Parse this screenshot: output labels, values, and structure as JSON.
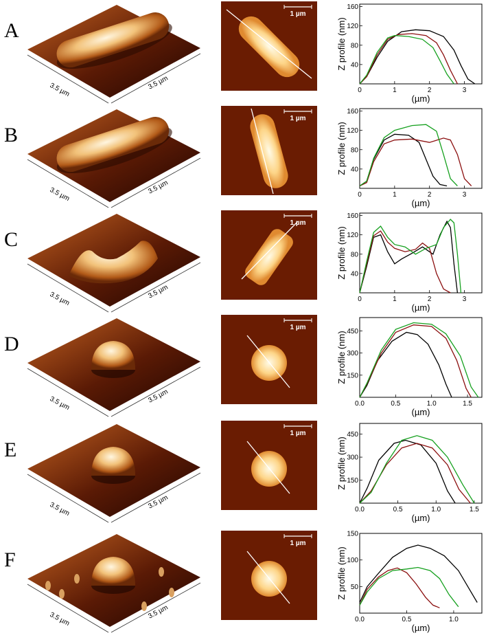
{
  "figure": {
    "scalebar_label": "1 µm",
    "axis_dim_label": "3.5 µm",
    "ylabel": "Z profile (nm)",
    "xlabel": "(µm)",
    "colors": {
      "black": "#000000",
      "red": "#8b0f0f",
      "green": "#15a01e"
    }
  },
  "rows": [
    {
      "letter": "A",
      "shape": "rod",
      "chart_data": {
        "type": "line",
        "xlim": [
          0,
          3.5
        ],
        "ylim": [
          0,
          165
        ],
        "xticks": [
          "0",
          "1",
          "2",
          "3"
        ],
        "yticks": [
          "40",
          "80",
          "120",
          "160"
        ],
        "series": [
          {
            "name": "black",
            "x": [
              0,
              0.2,
              0.5,
              0.8,
              1.2,
              1.6,
              2.0,
              2.4,
              2.7,
              2.9,
              3.1,
              3.3
            ],
            "y": [
              0,
              15,
              55,
              88,
              108,
              112,
              110,
              98,
              70,
              38,
              10,
              0
            ]
          },
          {
            "name": "red",
            "x": [
              0,
              0.2,
              0.5,
              0.8,
              1.1,
              1.5,
              1.9,
              2.2,
              2.4,
              2.6,
              2.8
            ],
            "y": [
              0,
              15,
              60,
              92,
              102,
              104,
              100,
              85,
              60,
              28,
              0
            ]
          },
          {
            "name": "green",
            "x": [
              0,
              0.2,
              0.5,
              0.8,
              1.0,
              1.4,
              1.8,
              2.1,
              2.3,
              2.5,
              2.7
            ],
            "y": [
              0,
              18,
              65,
              95,
              100,
              98,
              92,
              75,
              48,
              20,
              0
            ]
          }
        ]
      }
    },
    {
      "letter": "B",
      "shape": "rod",
      "chart_data": {
        "type": "line",
        "xlim": [
          0,
          3.5
        ],
        "ylim": [
          0,
          165
        ],
        "xticks": [
          "0",
          "1",
          "2",
          "3"
        ],
        "yticks": [
          "40",
          "80",
          "120",
          "160"
        ],
        "series": [
          {
            "name": "black",
            "x": [
              0,
              0.2,
              0.4,
              0.7,
              1.0,
              1.4,
              1.7,
              1.9,
              2.1,
              2.3,
              2.5
            ],
            "y": [
              5,
              15,
              60,
              100,
              112,
              110,
              95,
              60,
              25,
              8,
              5
            ]
          },
          {
            "name": "red",
            "x": [
              0,
              0.2,
              0.4,
              0.7,
              1.0,
              1.5,
              2.0,
              2.4,
              2.6,
              2.8,
              3.0,
              3.2
            ],
            "y": [
              5,
              12,
              55,
              92,
              100,
              102,
              95,
              104,
              100,
              70,
              20,
              5
            ]
          },
          {
            "name": "green",
            "x": [
              0,
              0.2,
              0.4,
              0.7,
              1.0,
              1.5,
              1.9,
              2.2,
              2.4,
              2.6,
              2.8
            ],
            "y": [
              5,
              15,
              62,
              105,
              120,
              130,
              132,
              118,
              70,
              20,
              5
            ]
          }
        ]
      }
    },
    {
      "letter": "C",
      "shape": "collapsed",
      "chart_data": {
        "type": "line",
        "xlim": [
          0,
          3.5
        ],
        "ylim": [
          0,
          165
        ],
        "xticks": [
          "0",
          "1",
          "2",
          "3"
        ],
        "yticks": [
          "40",
          "80",
          "120",
          "160"
        ],
        "series": [
          {
            "name": "black",
            "x": [
              0,
              0.2,
              0.4,
              0.6,
              0.8,
              1.0,
              1.2,
              1.5,
              1.8,
              2.1,
              2.3,
              2.5,
              2.6,
              2.7,
              2.8
            ],
            "y": [
              0,
              55,
              115,
              120,
              85,
              60,
              70,
              82,
              95,
              80,
              120,
              148,
              135,
              60,
              0
            ]
          },
          {
            "name": "red",
            "x": [
              0,
              0.2,
              0.4,
              0.6,
              0.8,
              1.0,
              1.3,
              1.6,
              1.8,
              2.0,
              2.2,
              2.4,
              2.6
            ],
            "y": [
              0,
              60,
              118,
              128,
              105,
              92,
              85,
              90,
              103,
              92,
              40,
              8,
              0
            ]
          },
          {
            "name": "green",
            "x": [
              0,
              0.2,
              0.4,
              0.6,
              0.8,
              1.0,
              1.3,
              1.6,
              1.9,
              2.2,
              2.4,
              2.6,
              2.7,
              2.8,
              2.9
            ],
            "y": [
              0,
              65,
              125,
              138,
              115,
              100,
              95,
              80,
              92,
              100,
              135,
              152,
              145,
              80,
              0
            ]
          }
        ]
      }
    },
    {
      "letter": "D",
      "shape": "dome",
      "chart_data": {
        "type": "line",
        "xlim": [
          0,
          1.7
        ],
        "ylim": [
          0,
          540
        ],
        "xticks": [
          "0.0",
          "0.5",
          "1.0",
          "1.5"
        ],
        "yticks": [
          "150",
          "300",
          "450"
        ],
        "series": [
          {
            "name": "black",
            "x": [
              0,
              0.1,
              0.25,
              0.45,
              0.65,
              0.8,
              0.95,
              1.1,
              1.2,
              1.28
            ],
            "y": [
              0,
              80,
              250,
              380,
              440,
              425,
              360,
              220,
              90,
              0
            ]
          },
          {
            "name": "red",
            "x": [
              0,
              0.1,
              0.3,
              0.5,
              0.75,
              1.0,
              1.2,
              1.35,
              1.48,
              1.55
            ],
            "y": [
              0,
              90,
              300,
              440,
              490,
              480,
              400,
              250,
              60,
              0
            ]
          },
          {
            "name": "green",
            "x": [
              0,
              0.1,
              0.3,
              0.5,
              0.75,
              1.0,
              1.2,
              1.4,
              1.55,
              1.65
            ],
            "y": [
              0,
              95,
              320,
              460,
              505,
              495,
              430,
              280,
              70,
              0
            ]
          }
        ]
      }
    },
    {
      "letter": "E",
      "shape": "dome",
      "chart_data": {
        "type": "line",
        "xlim": [
          0,
          1.6
        ],
        "ylim": [
          0,
          520
        ],
        "xticks": [
          "0.0",
          "0.5",
          "1.0",
          "1.5"
        ],
        "yticks": [
          "150",
          "300",
          "450"
        ],
        "series": [
          {
            "name": "black",
            "x": [
              0,
              0.1,
              0.25,
              0.45,
              0.6,
              0.8,
              1.0,
              1.15,
              1.25
            ],
            "y": [
              0,
              100,
              280,
              390,
              410,
              380,
              260,
              80,
              0
            ]
          },
          {
            "name": "red",
            "x": [
              0,
              0.15,
              0.35,
              0.55,
              0.75,
              0.95,
              1.15,
              1.3,
              1.45
            ],
            "y": [
              0,
              80,
              250,
              360,
              390,
              360,
              250,
              90,
              0
            ]
          },
          {
            "name": "green",
            "x": [
              0,
              0.15,
              0.35,
              0.55,
              0.75,
              0.95,
              1.15,
              1.35,
              1.5
            ],
            "y": [
              0,
              70,
              260,
              410,
              440,
              410,
              300,
              120,
              0
            ]
          }
        ]
      }
    },
    {
      "letter": "F",
      "shape": "dome-rough",
      "chart_data": {
        "type": "line",
        "xlim": [
          0,
          1.3
        ],
        "ylim": [
          0,
          150
        ],
        "xticks": [
          "0.0",
          "0.5",
          "1.0"
        ],
        "yticks": [
          "50",
          "100",
          "150"
        ],
        "series": [
          {
            "name": "black",
            "x": [
              0,
              0.08,
              0.2,
              0.35,
              0.5,
              0.62,
              0.75,
              0.9,
              1.05,
              1.15,
              1.25
            ],
            "y": [
              20,
              50,
              75,
              105,
              122,
              128,
              122,
              108,
              80,
              50,
              20
            ]
          },
          {
            "name": "red",
            "x": [
              0,
              0.08,
              0.2,
              0.3,
              0.4,
              0.5,
              0.6,
              0.7,
              0.78,
              0.85
            ],
            "y": [
              15,
              45,
              68,
              80,
              85,
              76,
              55,
              30,
              15,
              10
            ]
          },
          {
            "name": "green",
            "x": [
              0,
              0.08,
              0.2,
              0.35,
              0.5,
              0.62,
              0.75,
              0.85,
              0.95,
              1.05
            ],
            "y": [
              15,
              40,
              65,
              80,
              83,
              86,
              80,
              65,
              35,
              12
            ]
          }
        ]
      }
    }
  ]
}
